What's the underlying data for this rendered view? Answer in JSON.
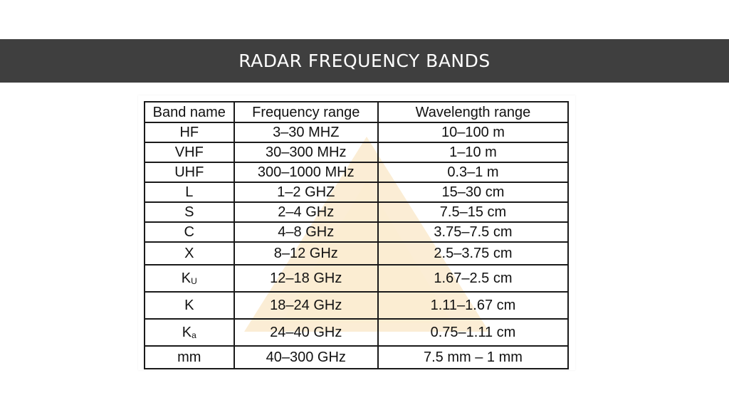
{
  "slide": {
    "title": "RADAR FREQUENCY BANDS"
  },
  "table": {
    "headers": [
      "Band name",
      "Frequency range",
      "Wavelength range"
    ],
    "rows": [
      {
        "band": "HF",
        "band_sub": "",
        "frequency": "3–30 MHZ",
        "wavelength": "10–100 m"
      },
      {
        "band": "VHF",
        "band_sub": "",
        "frequency": "30–300 MHz",
        "wavelength": "1–10 m"
      },
      {
        "band": "UHF",
        "band_sub": "",
        "frequency": "300–1000 MHz",
        "wavelength": "0.3–1 m"
      },
      {
        "band": "L",
        "band_sub": "",
        "frequency": "1–2 GHZ",
        "wavelength": "15–30 cm"
      },
      {
        "band": "S",
        "band_sub": "",
        "frequency": "2–4 GHz",
        "wavelength": "7.5–15 cm"
      },
      {
        "band": "C",
        "band_sub": "",
        "frequency": "4–8 GHz",
        "wavelength": "3.75–7.5 cm"
      },
      {
        "band": "X",
        "band_sub": "",
        "frequency": "8–12 GHz",
        "wavelength": "2.5–3.75 cm"
      },
      {
        "band": "K",
        "band_sub": "U",
        "frequency": "12–18 GHz",
        "wavelength": "1.67–2.5 cm"
      },
      {
        "band": "K",
        "band_sub": "",
        "frequency": "18–24 GHz",
        "wavelength": "1.11–1.67 cm"
      },
      {
        "band": "K",
        "band_sub": "a",
        "frequency": "24–40 GHz",
        "wavelength": "0.75–1.11 cm"
      },
      {
        "band": "mm",
        "band_sub": "",
        "frequency": "40–300 GHz",
        "wavelength": "7.5 mm – 1 mm"
      }
    ]
  },
  "colors": {
    "title_bar": "#3f3f3f",
    "title_text": "#ffffff",
    "watermark": "#f7dfb2"
  }
}
